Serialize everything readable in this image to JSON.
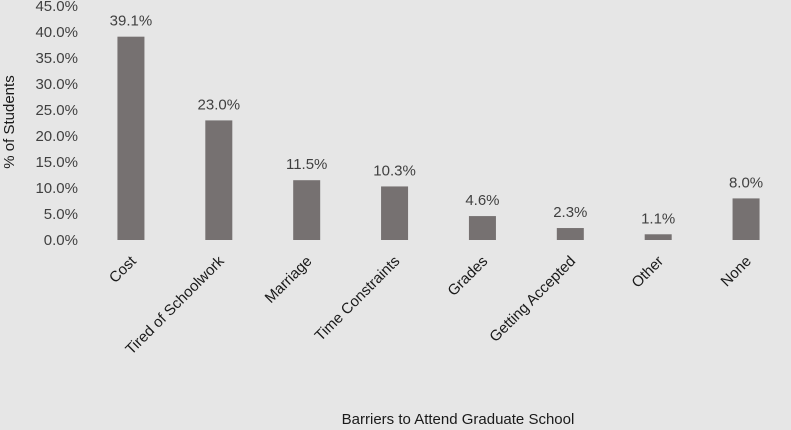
{
  "chart_data": {
    "type": "bar",
    "categories": [
      "Cost",
      "Tired of Schoolwork",
      "Marriage",
      "Time Constraints",
      "Grades",
      "Getting Accepted",
      "Other",
      "None"
    ],
    "values": [
      39.1,
      23.0,
      11.5,
      10.3,
      4.6,
      2.3,
      1.1,
      8.0
    ],
    "data_labels": [
      "39.1%",
      "23.0%",
      "11.5%",
      "10.3%",
      "4.6%",
      "2.3%",
      "1.1%",
      "8.0%"
    ],
    "y_ticks": [
      "0.0%",
      "5.0%",
      "10.0%",
      "15.0%",
      "20.0%",
      "25.0%",
      "30.0%",
      "35.0%",
      "40.0%",
      "45.0%"
    ],
    "ylim": [
      0,
      45
    ],
    "xlabel": "Barriers to Attend Graduate School",
    "ylabel": "% of Students",
    "grid": false,
    "legend": "none",
    "bar_color": "#767171",
    "background_color": "#e6e6e6"
  }
}
